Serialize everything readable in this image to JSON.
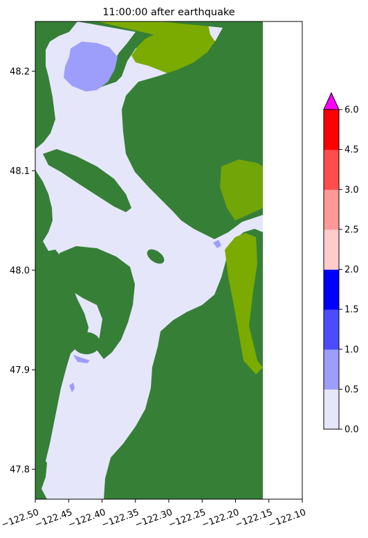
{
  "chart_data": {
    "type": "heatmap",
    "title": "11:00:00 after earthquake",
    "xlabel": "",
    "ylabel": "",
    "xlim": [
      -122.5,
      -122.1
    ],
    "ylim": [
      47.77,
      48.25
    ],
    "data_extent_x": [
      -122.5,
      -122.158
    ],
    "x_ticks": [
      -122.5,
      -122.45,
      -122.4,
      -122.35,
      -122.3,
      -122.25,
      -122.2,
      -122.15,
      -122.1
    ],
    "x_tick_labels": [
      "−122.50",
      "−122.45",
      "−122.40",
      "−122.35",
      "−122.30",
      "−122.25",
      "−122.20",
      "−122.15",
      "−122.10"
    ],
    "y_ticks": [
      47.8,
      47.9,
      48.0,
      48.1,
      48.2
    ],
    "y_tick_labels": [
      "47.8",
      "47.9",
      "48.0",
      "48.1",
      "48.2"
    ],
    "grid": false,
    "colorbar": {
      "placement": "right",
      "extend": "max",
      "boundaries": [
        0.0,
        0.5,
        1.0,
        1.5,
        2.0,
        2.5,
        3.0,
        4.5,
        6.0
      ],
      "tick_labels": [
        "0.0",
        "0.5",
        "1.0",
        "1.5",
        "2.0",
        "2.5",
        "3.0",
        "4.5",
        "6.0"
      ],
      "colors": [
        "#e6e6fa",
        "#9d9dfb",
        "#4c4cfd",
        "#0000ff",
        "#ffcccc",
        "#ff9999",
        "#ff4c4c",
        "#ff0000"
      ],
      "over_color": "#ff00ff"
    },
    "colors": {
      "land": "#367f37",
      "shore": "#7bab00",
      "water": "#e6e6fa",
      "shallow": "#9d9dfb"
    }
  }
}
